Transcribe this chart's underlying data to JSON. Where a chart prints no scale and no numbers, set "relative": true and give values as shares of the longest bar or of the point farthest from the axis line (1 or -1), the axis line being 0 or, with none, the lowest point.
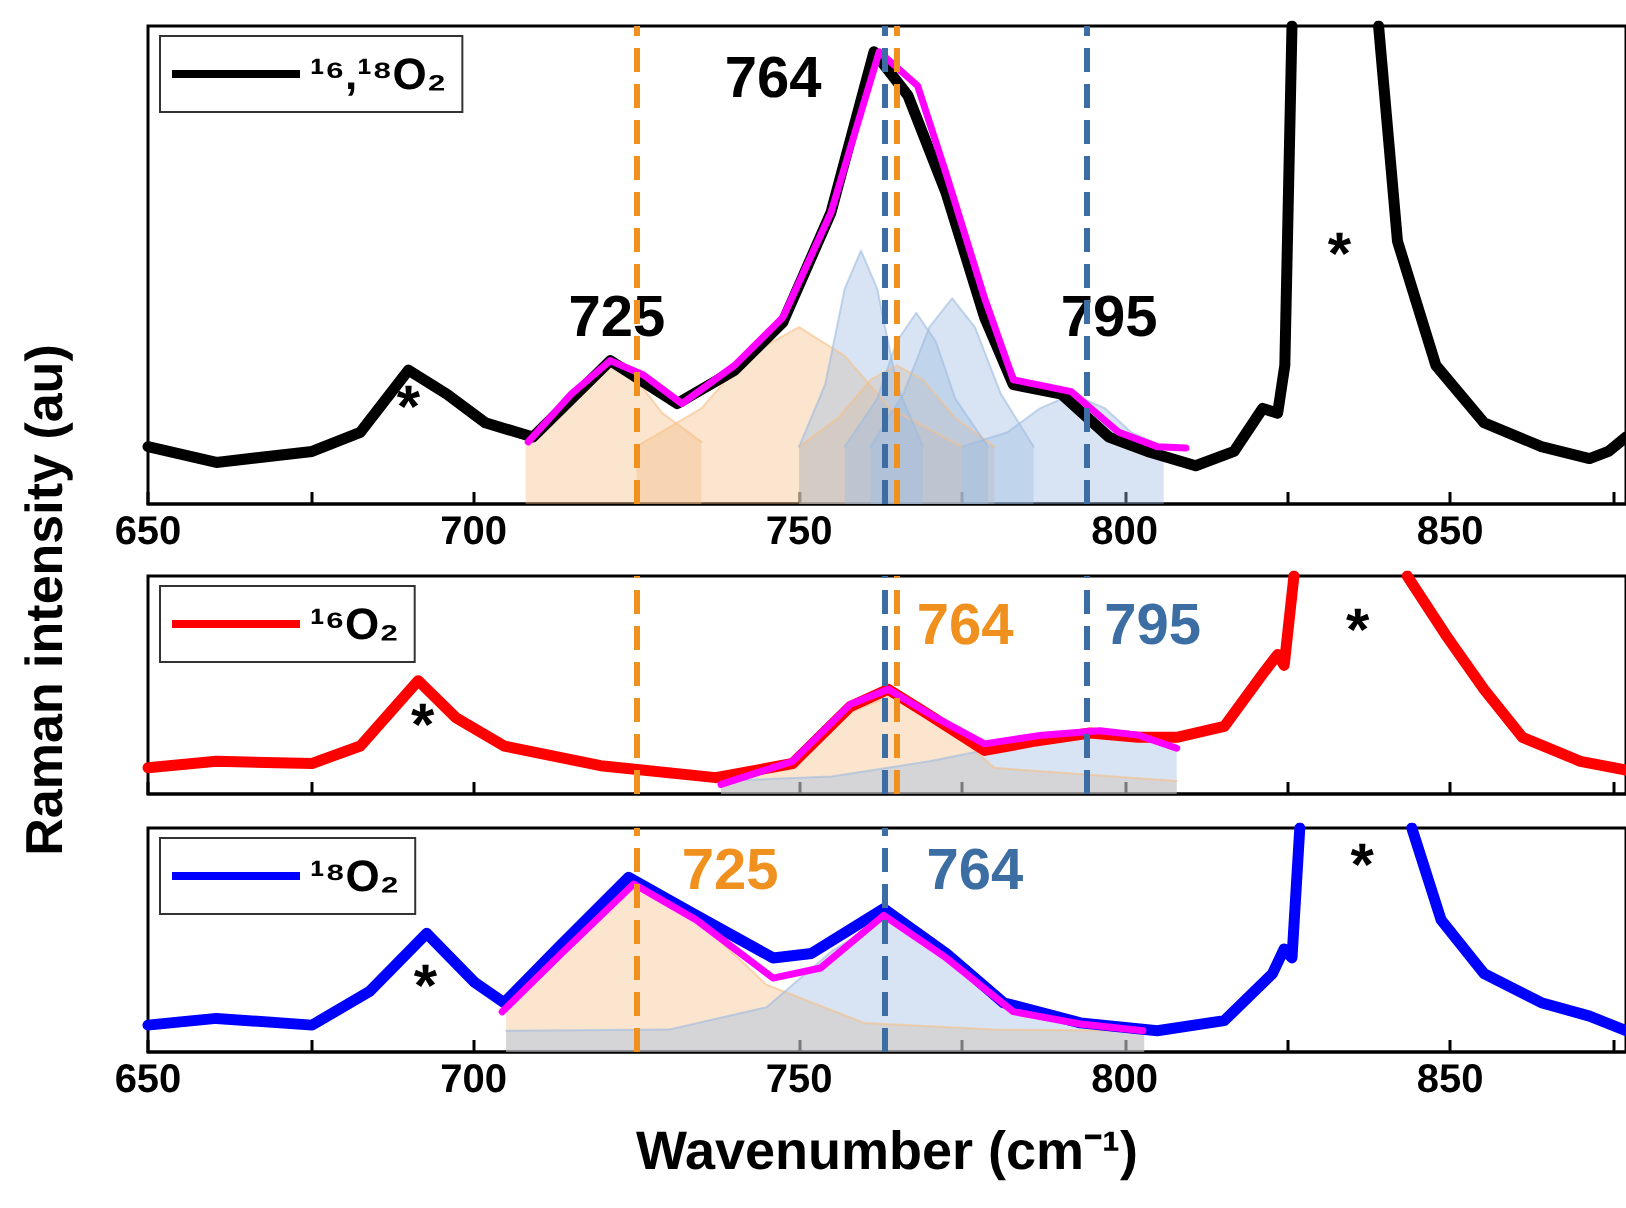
{
  "chart_data": [
    {
      "type": "line",
      "relative": true,
      "tick_labels": "x",
      "legend": "top left",
      "grid": false,
      "xlim": [
        650,
        877
      ],
      "xticks": [
        650,
        {
          "value": 675,
          "label": null
        },
        700,
        {
          "value": 725,
          "label": null
        },
        750,
        {
          "value": 775,
          "label": null
        },
        800,
        {
          "value": 825,
          "label": null
        },
        850,
        {
          "value": 875,
          "label": null
        }
      ],
      "series": [
        {
          "type": "area",
          "color": "#f6bf86",
          "x": [
            708,
            713,
            717,
            721,
            725,
            729,
            735
          ],
          "values": [
            0.13,
            0.19,
            0.26,
            0.29,
            0.26,
            0.19,
            0.13
          ]
        },
        {
          "type": "area",
          "color": "#f6bf86",
          "x": [
            725,
            735,
            742,
            750,
            757,
            764,
            775
          ],
          "values": [
            0.12,
            0.2,
            0.31,
            0.37,
            0.31,
            0.2,
            0.12
          ]
        },
        {
          "type": "area",
          "color": "#f6bf86",
          "x": [
            750,
            756,
            761,
            765,
            769,
            774,
            780
          ],
          "values": [
            0.12,
            0.18,
            0.26,
            0.29,
            0.26,
            0.18,
            0.12
          ]
        },
        {
          "type": "area",
          "color": "#9dbbe0",
          "x": [
            750,
            754,
            757,
            759.5,
            762,
            765,
            769
          ],
          "values": [
            0.12,
            0.25,
            0.45,
            0.53,
            0.45,
            0.25,
            0.12
          ]
        },
        {
          "type": "area",
          "color": "#9dbbe0",
          "x": [
            757,
            762,
            765,
            768,
            771,
            774,
            779
          ],
          "values": [
            0.12,
            0.22,
            0.34,
            0.4,
            0.34,
            0.22,
            0.12
          ]
        },
        {
          "type": "area",
          "color": "#9dbbe0",
          "x": [
            761,
            766,
            770,
            773.5,
            777,
            781,
            786
          ],
          "values": [
            0.12,
            0.23,
            0.37,
            0.43,
            0.37,
            0.23,
            0.12
          ]
        },
        {
          "type": "area",
          "color": "#9dbbe0",
          "x": [
            775,
            782,
            787,
            792,
            797,
            801,
            806
          ],
          "values": [
            0.12,
            0.15,
            0.2,
            0.23,
            0.2,
            0.15,
            0.12
          ]
        },
        {
          "name": "¹⁶,¹⁸O₂",
          "color": "#000000",
          "x": [
            650,
            660.5,
            675.2,
            682.6,
            690,
            695.9,
            701.8,
            709.1,
            721,
            731.3,
            740.1,
            747.5,
            754.9,
            761.5,
            766.7,
            772.6,
            778.5,
            782.9,
            790.3,
            797.6,
            803.5,
            810.9,
            816.8,
            821.2,
            823.5,
            824.6,
            825.7,
            832,
            839,
            841.9,
            847.8,
            855.2,
            864,
            871.4,
            874.3,
            877
          ],
          "values": [
            0.12,
            0.087,
            0.11,
            0.15,
            0.28,
            0.23,
            0.17,
            0.14,
            0.3,
            0.21,
            0.28,
            0.38,
            0.61,
            0.946,
            0.855,
            0.65,
            0.39,
            0.25,
            0.23,
            0.14,
            0.11,
            0.08,
            0.11,
            0.2,
            0.19,
            0.29,
            1,
            null,
            1,
            0.55,
            0.29,
            0.17,
            0.12,
            0.095,
            0.11,
            0.14
          ]
        },
        {
          "color": "#ff00ff",
          "x": [
            708.4,
            715,
            721,
            726.1,
            732,
            740.1,
            747.5,
            754.9,
            762.3,
            768.2,
            772.6,
            778.5,
            782.9,
            791.8,
            799.1,
            805,
            809.4
          ],
          "values": [
            0.13,
            0.23,
            0.3,
            0.27,
            0.21,
            0.29,
            0.39,
            0.61,
            0.946,
            0.875,
            0.69,
            0.43,
            0.26,
            0.235,
            0.15,
            0.12,
            0.117
          ]
        }
      ],
      "ref_lines": [
        {
          "axis": "x",
          "value": 725,
          "color": "#f0901e",
          "line_style": "dashed"
        },
        {
          "axis": "x",
          "value": 763,
          "color": "#3d6ea3",
          "line_style": "dashed"
        },
        {
          "axis": "x",
          "value": 765,
          "color": "#f0901e",
          "line_style": "dashed"
        },
        {
          "axis": "x",
          "value": 794,
          "color": "#3d6ea3",
          "line_style": "dashed"
        }
      ],
      "annotations": [
        "725",
        "764",
        "795",
        "*",
        "*"
      ]
    },
    {
      "type": "line",
      "relative": true,
      "tick_labels": false,
      "legend": "top left",
      "grid": false,
      "ylabel": "Raman intensity (au)",
      "xlim": [
        650,
        877
      ],
      "xticks": [
        650,
        {
          "value": 675,
          "label": null
        },
        700,
        {
          "value": 725,
          "label": null
        },
        750,
        {
          "value": 775,
          "label": null
        },
        800,
        {
          "value": 825,
          "label": null
        },
        850,
        {
          "value": 875,
          "label": null
        }
      ],
      "series": [
        {
          "type": "area",
          "color": "#f6bf86",
          "x": [
            738,
            748,
            756,
            764,
            772,
            780,
            808
          ],
          "values": [
            0.06,
            0.14,
            0.35,
            0.45,
            0.33,
            0.12,
            0.06
          ]
        },
        {
          "type": "area",
          "color": "#9dbbe0",
          "x": [
            738,
            755,
            770,
            785,
            795,
            808
          ],
          "values": [
            0.06,
            0.08,
            0.15,
            0.24,
            0.27,
            0.26
          ]
        },
        {
          "name": "¹⁶O₂",
          "color": "#ff0000",
          "x": [
            650,
            660.5,
            675.2,
            682.6,
            691.5,
            697.3,
            704.7,
            719.5,
            737.2,
            749,
            757.8,
            763.7,
            769.6,
            778.5,
            785.8,
            794.7,
            802.1,
            808,
            815.3,
            821.2,
            823.5,
            824.5,
            826,
            835,
            843.4,
            849.3,
            855.2,
            861.1,
            870,
            877
          ],
          "values": [
            0.12,
            0.15,
            0.14,
            0.22,
            0.52,
            0.35,
            0.22,
            0.13,
            0.075,
            0.14,
            0.4,
            0.48,
            0.37,
            0.2,
            0.24,
            0.28,
            0.26,
            0.26,
            0.31,
            0.55,
            0.64,
            0.59,
            1,
            null,
            1,
            0.73,
            0.48,
            0.26,
            0.15,
            0.11
          ]
        },
        {
          "color": "#ff00ff",
          "x": [
            738,
            749,
            757.8,
            763.7,
            771,
            778.5,
            787.3,
            796.2,
            802.1,
            808
          ],
          "values": [
            0.044,
            0.15,
            0.41,
            0.48,
            0.35,
            0.23,
            0.27,
            0.29,
            0.27,
            0.21
          ]
        }
      ],
      "ref_lines": [
        {
          "axis": "x",
          "value": 725,
          "color": "#f0901e",
          "line_style": "dashed"
        },
        {
          "axis": "x",
          "value": 763,
          "color": "#3d6ea3",
          "line_style": "dashed"
        },
        {
          "axis": "x",
          "value": 765,
          "color": "#f0901e",
          "line_style": "dashed"
        },
        {
          "axis": "x",
          "value": 794,
          "color": "#3d6ea3",
          "line_style": "dashed"
        }
      ],
      "annotations": [
        "764",
        "795",
        "*",
        "*"
      ]
    },
    {
      "type": "line",
      "relative": true,
      "tick_labels": "x",
      "legend": "top left",
      "grid": false,
      "xlabel": "Wavenumber (cm⁻¹)",
      "xlim": [
        650,
        877
      ],
      "xticks": [
        650,
        {
          "value": 675,
          "label": null
        },
        700,
        {
          "value": 725,
          "label": null
        },
        750,
        {
          "value": 775,
          "label": null
        },
        800,
        {
          "value": 825,
          "label": null
        },
        850,
        {
          "value": 875,
          "label": null
        }
      ],
      "series": [
        {
          "type": "area",
          "color": "#f6bf86",
          "x": [
            705,
            713,
            719,
            726,
            734,
            745,
            760,
            780,
            803
          ],
          "values": [
            0.19,
            0.44,
            0.65,
            0.75,
            0.6,
            0.3,
            0.13,
            0.1,
            0.095
          ]
        },
        {
          "type": "area",
          "color": "#9dbbe0",
          "x": [
            705,
            730,
            745,
            755,
            764,
            773,
            783,
            795,
            803
          ],
          "values": [
            0.095,
            0.1,
            0.2,
            0.45,
            0.61,
            0.42,
            0.2,
            0.12,
            0.1
          ]
        },
        {
          "name": "¹⁸O₂",
          "color": "#0000ff",
          "x": [
            650,
            660.5,
            675.2,
            684,
            692.8,
            700.2,
            704.7,
            713.5,
            723.8,
            734.2,
            746,
            751.9,
            763,
            772.6,
            781.4,
            793.2,
            805,
            815.3,
            822.7,
            824.5,
            825.7,
            826.9,
            835,
            844.1,
            848.6,
            855.2,
            864,
            871.4,
            877
          ],
          "values": [
            0.12,
            0.15,
            0.12,
            0.27,
            0.53,
            0.31,
            0.22,
            0.48,
            0.78,
            0.61,
            0.42,
            0.44,
            0.64,
            0.44,
            0.22,
            0.13,
            0.095,
            0.14,
            0.35,
            0.46,
            0.42,
            1,
            null,
            1,
            0.59,
            0.35,
            0.22,
            0.16,
            0.095
          ]
        },
        {
          "color": "#ff00ff",
          "x": [
            704.4,
            713.5,
            724.6,
            734.2,
            746,
            753.3,
            763,
            772.6,
            782.9,
            793.2,
            802.8
          ],
          "values": [
            0.18,
            0.44,
            0.75,
            0.59,
            0.33,
            0.375,
            0.61,
            0.42,
            0.18,
            0.125,
            0.095
          ]
        }
      ],
      "ref_lines": [
        {
          "axis": "x",
          "value": 725,
          "color": "#f0901e",
          "line_style": "dashed"
        },
        {
          "axis": "x",
          "value": 763,
          "color": "#3d6ea3",
          "line_style": "dashed"
        }
      ],
      "annotations": [
        "725",
        "764",
        "*",
        "*"
      ]
    }
  ]
}
